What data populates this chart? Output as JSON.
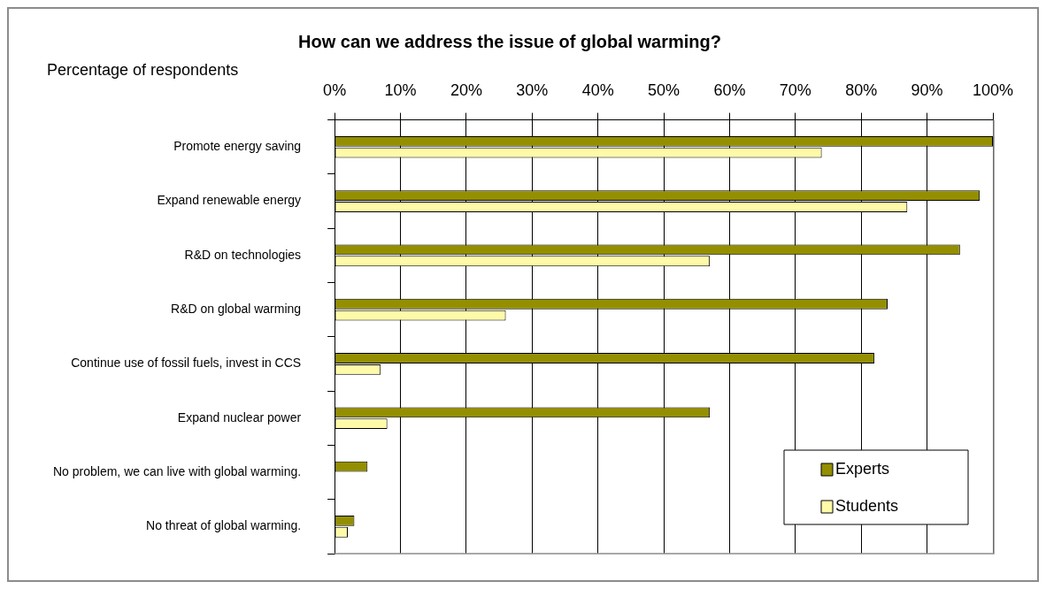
{
  "chart_data": {
    "type": "bar",
    "orientation": "horizontal",
    "title": "How can we address the issue of global warming?",
    "xlabel": "Percentage of respondents",
    "categories": [
      "Promote energy saving",
      "Expand renewable energy",
      "R&D on technologies",
      "R&D on global warming",
      "Continue use of fossil fuels, invest in CCS",
      "Expand nuclear power",
      "No problem, we can live with global warming.",
      "No threat of global warming."
    ],
    "series": [
      {
        "name": "Experts",
        "color": "#948f00",
        "values": [
          100,
          98,
          95,
          84,
          82,
          57,
          5,
          3
        ]
      },
      {
        "name": "Students",
        "color": "#fffaa8",
        "values": [
          74,
          87,
          57,
          26,
          7,
          8,
          null,
          2
        ]
      }
    ],
    "xlim": [
      0,
      100
    ],
    "xticks": [
      {
        "value": 0,
        "label": "0%"
      },
      {
        "value": 10,
        "label": "10%"
      },
      {
        "value": 20,
        "label": "20%"
      },
      {
        "value": 30,
        "label": "30%"
      },
      {
        "value": 40,
        "label": "40%"
      },
      {
        "value": 50,
        "label": "50%"
      },
      {
        "value": 60,
        "label": "60%"
      },
      {
        "value": 70,
        "label": "70%"
      },
      {
        "value": 80,
        "label": "80%"
      },
      {
        "value": 90,
        "label": "90%"
      },
      {
        "value": 100,
        "label": "100%"
      }
    ],
    "grid": "x",
    "legend": "bottom right"
  }
}
